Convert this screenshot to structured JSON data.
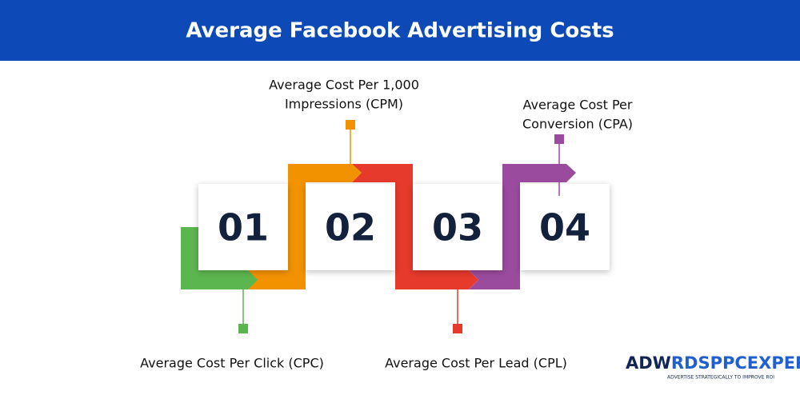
{
  "header": {
    "title": "Average Facebook Advertising Costs"
  },
  "steps": [
    {
      "number": "01",
      "label": [
        "Average Cost Per Click (CPC)"
      ]
    },
    {
      "number": "02",
      "label": [
        "Average Cost Per 1,000",
        "Impressions (CPM)"
      ]
    },
    {
      "number": "03",
      "label": [
        "Average Cost Per Lead (CPL)"
      ]
    },
    {
      "number": "04",
      "label": [
        "Average Cost Per",
        "Conversion (CPA)"
      ]
    }
  ],
  "logo": {
    "brand_a": "ADW",
    "brand_b": "RDS",
    "brand_c": "PPCEXPERT",
    "tagline": "ADVERTISE STRATEGICALLY TO IMPROVE ROI"
  }
}
